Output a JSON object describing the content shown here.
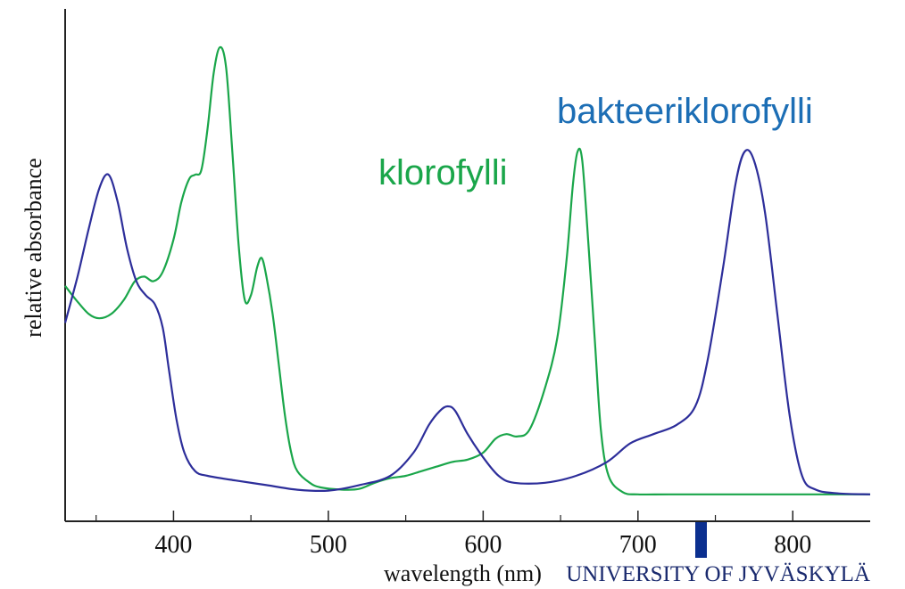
{
  "chart_data": {
    "type": "line",
    "title": "",
    "xlabel": "wavelength (nm)",
    "ylabel": "relative absorbance",
    "xlim": [
      330,
      850
    ],
    "ylim": [
      0,
      1
    ],
    "grid": false,
    "x_ticks": [
      400,
      500,
      600,
      700,
      800
    ],
    "x_minor_ticks": [
      350,
      450,
      550,
      650,
      750
    ],
    "series": [
      {
        "name": "klorofylli",
        "color": "#1aa64a",
        "points": [
          [
            330,
            0.46
          ],
          [
            337,
            0.43
          ],
          [
            345,
            0.4
          ],
          [
            352,
            0.39
          ],
          [
            360,
            0.4
          ],
          [
            368,
            0.43
          ],
          [
            375,
            0.47
          ],
          [
            381,
            0.48
          ],
          [
            387,
            0.47
          ],
          [
            393,
            0.49
          ],
          [
            400,
            0.56
          ],
          [
            405,
            0.64
          ],
          [
            410,
            0.69
          ],
          [
            414,
            0.7
          ],
          [
            418,
            0.71
          ],
          [
            422,
            0.8
          ],
          [
            426,
            0.92
          ],
          [
            430,
            0.975
          ],
          [
            434,
            0.93
          ],
          [
            438,
            0.75
          ],
          [
            442,
            0.55
          ],
          [
            446,
            0.43
          ],
          [
            450,
            0.44
          ],
          [
            454,
            0.5
          ],
          [
            457,
            0.52
          ],
          [
            460,
            0.48
          ],
          [
            464,
            0.4
          ],
          [
            468,
            0.29
          ],
          [
            472,
            0.18
          ],
          [
            476,
            0.1
          ],
          [
            480,
            0.06
          ],
          [
            488,
            0.035
          ],
          [
            495,
            0.025
          ],
          [
            510,
            0.02
          ],
          [
            520,
            0.022
          ],
          [
            530,
            0.035
          ],
          [
            540,
            0.045
          ],
          [
            550,
            0.05
          ],
          [
            560,
            0.06
          ],
          [
            570,
            0.07
          ],
          [
            580,
            0.08
          ],
          [
            590,
            0.085
          ],
          [
            600,
            0.1
          ],
          [
            608,
            0.13
          ],
          [
            615,
            0.14
          ],
          [
            622,
            0.135
          ],
          [
            630,
            0.15
          ],
          [
            640,
            0.24
          ],
          [
            648,
            0.35
          ],
          [
            654,
            0.52
          ],
          [
            658,
            0.68
          ],
          [
            661,
            0.75
          ],
          [
            664,
            0.73
          ],
          [
            668,
            0.55
          ],
          [
            672,
            0.35
          ],
          [
            676,
            0.15
          ],
          [
            681,
            0.05
          ],
          [
            690,
            0.015
          ],
          [
            700,
            0.01
          ],
          [
            720,
            0.01
          ],
          [
            760,
            0.01
          ],
          [
            800,
            0.01
          ],
          [
            850,
            0.01
          ]
        ]
      },
      {
        "name": "bakteeriklorofylli",
        "color": "#2d2e9a",
        "points": [
          [
            330,
            0.38
          ],
          [
            338,
            0.48
          ],
          [
            345,
            0.58
          ],
          [
            352,
            0.67
          ],
          [
            358,
            0.7
          ],
          [
            364,
            0.64
          ],
          [
            370,
            0.54
          ],
          [
            376,
            0.47
          ],
          [
            382,
            0.44
          ],
          [
            388,
            0.42
          ],
          [
            393,
            0.37
          ],
          [
            397,
            0.28
          ],
          [
            402,
            0.17
          ],
          [
            407,
            0.1
          ],
          [
            414,
            0.06
          ],
          [
            422,
            0.05
          ],
          [
            440,
            0.04
          ],
          [
            460,
            0.03
          ],
          [
            480,
            0.02
          ],
          [
            500,
            0.018
          ],
          [
            520,
            0.03
          ],
          [
            540,
            0.05
          ],
          [
            555,
            0.1
          ],
          [
            565,
            0.16
          ],
          [
            572,
            0.19
          ],
          [
            577,
            0.2
          ],
          [
            582,
            0.19
          ],
          [
            590,
            0.14
          ],
          [
            600,
            0.09
          ],
          [
            610,
            0.05
          ],
          [
            620,
            0.035
          ],
          [
            640,
            0.035
          ],
          [
            660,
            0.05
          ],
          [
            680,
            0.08
          ],
          [
            695,
            0.12
          ],
          [
            710,
            0.14
          ],
          [
            725,
            0.16
          ],
          [
            737,
            0.2
          ],
          [
            745,
            0.3
          ],
          [
            755,
            0.5
          ],
          [
            763,
            0.68
          ],
          [
            769,
            0.75
          ],
          [
            775,
            0.73
          ],
          [
            782,
            0.62
          ],
          [
            790,
            0.4
          ],
          [
            798,
            0.18
          ],
          [
            806,
            0.05
          ],
          [
            815,
            0.02
          ],
          [
            830,
            0.012
          ],
          [
            850,
            0.01
          ]
        ]
      }
    ],
    "annotations": [
      {
        "text": "klorofylli",
        "color": "#1aa64a"
      },
      {
        "text": "bakteeriklorofylli",
        "color": "#1c6eb5"
      }
    ]
  },
  "watermark": {
    "text": "UNIVERSITY OF JYVÄSKYLÄ",
    "marker_color": "#0b2f8f"
  }
}
